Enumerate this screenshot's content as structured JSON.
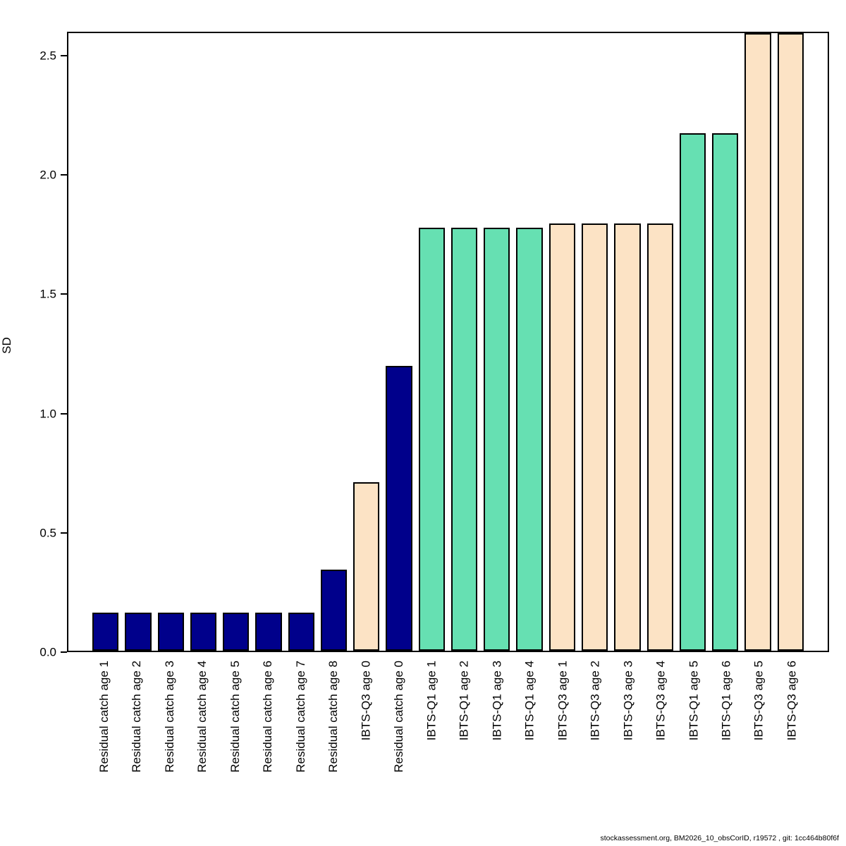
{
  "page": {
    "footer": "stockassessment.org, BM2026_10_obsCorID, r19572 , git: 1cc464b80f6f"
  },
  "chart_data": {
    "type": "bar",
    "title": "",
    "xlabel": "",
    "ylabel": "SD",
    "ylim": [
      0,
      2.6
    ],
    "grid": false,
    "legend_position": "none",
    "yticks": [
      0.0,
      0.5,
      1.0,
      1.5,
      2.0,
      2.5
    ],
    "ytick_labels": [
      "0.0",
      "0.5",
      "1.0",
      "1.5",
      "2.0",
      "2.5"
    ],
    "categories": [
      "Residual catch age 1",
      "Residual catch age 2",
      "Residual catch age 3",
      "Residual catch age 4",
      "Residual catch age 5",
      "Residual catch age 6",
      "Residual catch age 7",
      "Residual catch age 8",
      "IBTS-Q3 age 0",
      "Residual catch age 0",
      "IBTS-Q1 age 1",
      "IBTS-Q1 age 2",
      "IBTS-Q1 age 3",
      "IBTS-Q1 age 4",
      "IBTS-Q3 age 1",
      "IBTS-Q3 age 2",
      "IBTS-Q3 age 3",
      "IBTS-Q3 age 4",
      "IBTS-Q1 age 5",
      "IBTS-Q1 age 6",
      "IBTS-Q3 age 5",
      "IBTS-Q3 age 6"
    ],
    "values": [
      0.16,
      0.16,
      0.16,
      0.16,
      0.16,
      0.16,
      0.16,
      0.34,
      0.71,
      1.2,
      1.78,
      1.78,
      1.78,
      1.78,
      1.8,
      1.8,
      1.8,
      1.8,
      2.18,
      2.18,
      2.6,
      2.6
    ],
    "bar_colors": [
      "#00008B",
      "#00008B",
      "#00008B",
      "#00008B",
      "#00008B",
      "#00008B",
      "#00008B",
      "#00008B",
      "#FCE3C5",
      "#00008B",
      "#66E0B2",
      "#66E0B2",
      "#66E0B2",
      "#66E0B2",
      "#FCE3C5",
      "#FCE3C5",
      "#FCE3C5",
      "#FCE3C5",
      "#66E0B2",
      "#66E0B2",
      "#FCE3C5",
      "#FCE3C5"
    ],
    "color_legend": {
      "Residual catch": "#00008B",
      "IBTS-Q1": "#66E0B2",
      "IBTS-Q3": "#FCE3C5"
    }
  }
}
